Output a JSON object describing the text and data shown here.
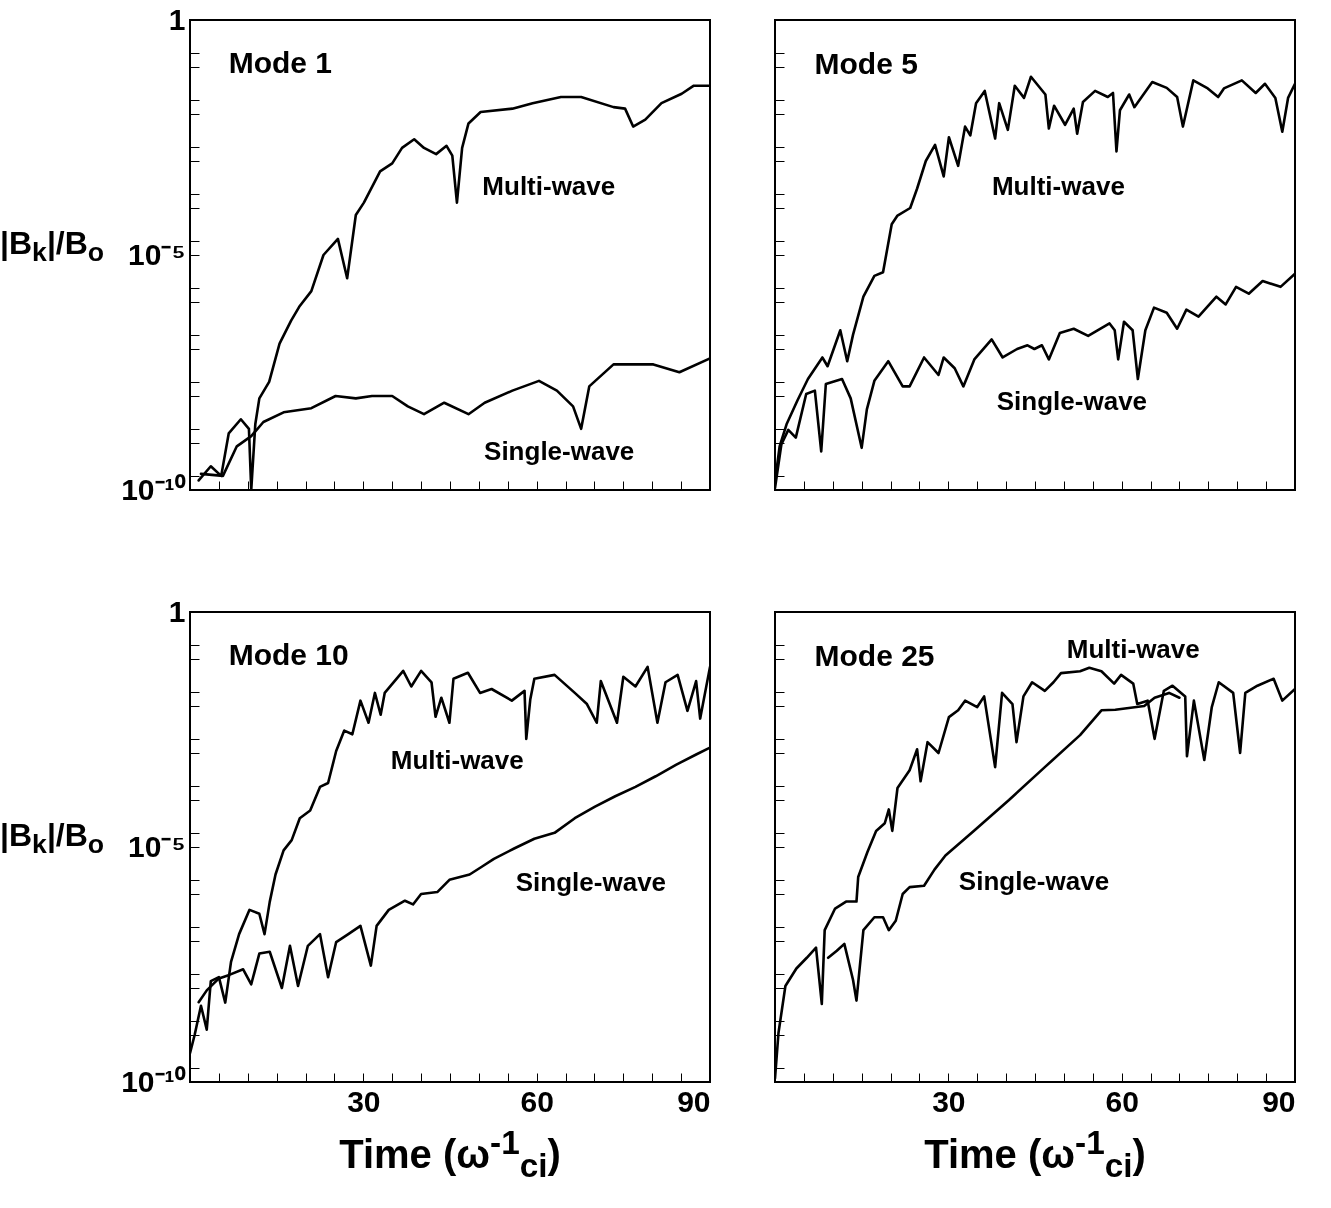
{
  "chart_data": [
    {
      "type": "line",
      "title": "Mode 1",
      "ylabel": "|B$_{k}$|/B$_{o}$",
      "log": "y",
      "tick_labels": "y",
      "xlim": [
        0,
        90
      ],
      "ylim": [
        1e-10,
        1
      ],
      "xticks": [
        {
          "value": 0,
          "label": null
        },
        {
          "value": 5,
          "label": null
        },
        {
          "value": 10,
          "label": null
        },
        {
          "value": 15,
          "label": null
        },
        {
          "value": 20,
          "label": null
        },
        {
          "value": 25,
          "label": null
        },
        {
          "value": 30,
          "label": null
        },
        {
          "value": 35,
          "label": null
        },
        {
          "value": 40,
          "label": null
        },
        {
          "value": 45,
          "label": null
        },
        {
          "value": 50,
          "label": null
        },
        {
          "value": 55,
          "label": null
        },
        {
          "value": 60,
          "label": null
        },
        {
          "value": 65,
          "label": null
        },
        {
          "value": 70,
          "label": null
        },
        {
          "value": 75,
          "label": null
        },
        {
          "value": 80,
          "label": null
        },
        {
          "value": 85,
          "label": null
        },
        {
          "value": 90,
          "label": null
        }
      ],
      "yticks": [
        {
          "value": 1e-10,
          "label": "10⁻¹⁰"
        },
        {
          "value": 2e-10,
          "label": null
        },
        {
          "value": 1e-09,
          "label": null
        },
        {
          "value": 2e-09,
          "label": null
        },
        {
          "value": 1e-08,
          "label": null
        },
        {
          "value": 2e-08,
          "label": null
        },
        {
          "value": 1e-07,
          "label": null
        },
        {
          "value": 2e-07,
          "label": null
        },
        {
          "value": 1e-06,
          "label": null
        },
        {
          "value": 2e-06,
          "label": null
        },
        {
          "value": 1e-05,
          "label": "10⁻⁵"
        },
        {
          "value": 2e-05,
          "label": null
        },
        {
          "value": 0.0001,
          "label": null
        },
        {
          "value": 0.0002,
          "label": null
        },
        {
          "value": 0.001,
          "label": null
        },
        {
          "value": 0.002,
          "label": null
        },
        {
          "value": 0.01,
          "label": null
        },
        {
          "value": 0.02,
          "label": null
        },
        {
          "value": 0.1,
          "label": null
        },
        {
          "value": 0.2,
          "label": null
        },
        1
      ],
      "series": [
        {
          "name": "Multi-wave",
          "color": "#000000",
          "x": [
            1.5,
            3.6,
            5.4,
            6.7,
            8.8,
            10.2,
            10.6,
            11.3,
            12,
            13.7,
            15.5,
            17.5,
            18.9,
            21,
            23.1,
            25.6,
            27.2,
            28.7,
            30.1,
            32.9,
            35,
            36.7,
            38.8,
            40.5,
            42.6,
            44.4,
            45.4,
            46.2,
            47.1,
            48.2,
            50.3,
            55.8,
            59.3,
            64.2,
            67.7,
            73.3,
            75.3,
            76.7,
            78.8,
            81.6,
            85.1,
            87.2,
            90
          ],
          "values": [
            1.6e-10,
            3.2e-10,
            2e-10,
            1.6e-09,
            3.2e-09,
            2e-09,
            1e-10,
            2.5e-09,
            8.9e-09,
            2e-08,
            1.3e-07,
            4e-07,
            7.9e-07,
            1.7e-06,
            1e-05,
            2.2e-05,
            3.2e-06,
            7.1e-05,
            0.00013,
            0.0006,
            0.00089,
            0.0019,
            0.0029,
            0.0019,
            0.0014,
            0.0021,
            0.0013,
            0.00013,
            0.0019,
            0.0063,
            0.011,
            0.013,
            0.017,
            0.023,
            0.023,
            0.014,
            0.013,
            0.0054,
            0.0076,
            0.017,
            0.027,
            0.04,
            0.04
          ]
        },
        {
          "name": "Single-wave",
          "color": "#000000",
          "x": [
            1.9,
            5.7,
            8.1,
            10.6,
            12.7,
            16.2,
            21,
            25.2,
            28.7,
            31.5,
            35,
            37.7,
            40.5,
            44,
            48.2,
            51,
            55.8,
            60.4,
            63.5,
            66.3,
            67.7,
            69.1,
            73.3,
            80.2,
            84.7,
            90
          ],
          "values": [
            2.2e-10,
            2e-10,
            8.5e-10,
            1.4e-09,
            2.8e-09,
            4.5e-09,
            5.5e-09,
            1e-08,
            8.9e-09,
            1e-08,
            1e-08,
            6e-09,
            4.1e-09,
            7.2e-09,
            4.1e-09,
            7.2e-09,
            1.3e-08,
            2.1e-08,
            1.3e-08,
            6e-09,
            2e-09,
            1.6e-08,
            4.7e-08,
            4.7e-08,
            3.2e-08,
            6.3e-08
          ]
        }
      ]
    },
    {
      "type": "line",
      "title": "Mode 5",
      "log": "y",
      "tick_labels": false,
      "xlim": [
        0,
        90
      ],
      "ylim": [
        1e-10,
        1
      ],
      "xticks": [
        {
          "value": 0,
          "label": null
        },
        {
          "value": 5,
          "label": null
        },
        {
          "value": 10,
          "label": null
        },
        {
          "value": 15,
          "label": null
        },
        {
          "value": 20,
          "label": null
        },
        {
          "value": 25,
          "label": null
        },
        {
          "value": 30,
          "label": null
        },
        {
          "value": 35,
          "label": null
        },
        {
          "value": 40,
          "label": null
        },
        {
          "value": 45,
          "label": null
        },
        {
          "value": 50,
          "label": null
        },
        {
          "value": 55,
          "label": null
        },
        {
          "value": 60,
          "label": null
        },
        {
          "value": 65,
          "label": null
        },
        {
          "value": 70,
          "label": null
        },
        {
          "value": 75,
          "label": null
        },
        {
          "value": 80,
          "label": null
        },
        {
          "value": 85,
          "label": null
        },
        {
          "value": 90,
          "label": null
        }
      ],
      "yticks": [
        {
          "value": 1e-10,
          "label": null
        },
        {
          "value": 2e-10,
          "label": null
        },
        {
          "value": 1e-09,
          "label": null
        },
        {
          "value": 2e-09,
          "label": null
        },
        {
          "value": 1e-08,
          "label": null
        },
        {
          "value": 2e-08,
          "label": null
        },
        {
          "value": 1e-07,
          "label": null
        },
        {
          "value": 2e-07,
          "label": null
        },
        {
          "value": 1e-06,
          "label": null
        },
        {
          "value": 2e-06,
          "label": null
        },
        {
          "value": 1e-05,
          "label": null
        },
        {
          "value": 2e-05,
          "label": null
        },
        {
          "value": 0.0001,
          "label": null
        },
        {
          "value": 0.0002,
          "label": null
        },
        {
          "value": 0.001,
          "label": null
        },
        {
          "value": 0.002,
          "label": null
        },
        {
          "value": 0.01,
          "label": null
        },
        {
          "value": 0.02,
          "label": null
        },
        {
          "value": 0.1,
          "label": null
        },
        {
          "value": 0.2,
          "label": null
        },
        {
          "value": 1,
          "label": null
        }
      ],
      "series": [
        {
          "name": "Multi-wave",
          "color": "#000000",
          "x": [
            0,
            0.8,
            2.0,
            3.9,
            5.7,
            8.2,
            9.1,
            11.3,
            12.5,
            13.5,
            15.3,
            17.2,
            18.7,
            20.2,
            21.2,
            23.4,
            24.6,
            26.1,
            27.7,
            29.2,
            30.1,
            31.7,
            32.9,
            33.8,
            34.8,
            36.3,
            38.1,
            38.8,
            40.3,
            41.5,
            43.1,
            44.3,
            46.8,
            47.4,
            48.3,
            50.2,
            51.7,
            52.3,
            53.3,
            55.4,
            57.6,
            58.5,
            59.1,
            59.7,
            61.3,
            62.2,
            65.3,
            67.8,
            69.6,
            70.6,
            72.4,
            74.9,
            76.7,
            77.7,
            80.8,
            83.2,
            84.8,
            86.6,
            87.8,
            88.8,
            90
          ],
          "values": [
            1.5e-10,
            8.5e-10,
            2.5e-09,
            8.1e-09,
            2.3e-08,
            6.6e-08,
            4.3e-08,
            2.5e-07,
            5.5e-08,
            2e-07,
            1.3e-06,
            3.6e-06,
            4.3e-06,
            4.5e-05,
            6.9e-05,
            0.0001,
            0.00026,
            0.001,
            0.0022,
            0.00047,
            0.0032,
            0.00079,
            0.0054,
            0.0035,
            0.017,
            0.031,
            0.003,
            0.017,
            0.0046,
            0.04,
            0.022,
            0.062,
            0.026,
            0.0049,
            0.015,
            0.0059,
            0.013,
            0.0038,
            0.018,
            0.031,
            0.023,
            0.028,
            0.0016,
            0.012,
            0.026,
            0.014,
            0.048,
            0.036,
            0.023,
            0.0054,
            0.052,
            0.035,
            0.023,
            0.035,
            0.052,
            0.028,
            0.044,
            0.022,
            0.0042,
            0.022,
            0.044
          ]
        },
        {
          "name": "Single-wave",
          "color": "#000000",
          "x": [
            0,
            1.1,
            2.3,
            3.6,
            5.4,
            6.9,
            8.0,
            8.8,
            11.6,
            13.1,
            15.0,
            15.9,
            17.2,
            19.6,
            22.1,
            23.3,
            25.8,
            28.3,
            29.2,
            31.1,
            32.6,
            34.5,
            37.5,
            39.4,
            41.9,
            43.7,
            44.9,
            46.2,
            47.4,
            49.3,
            51.7,
            54.2,
            57.9,
            58.8,
            59.4,
            60.4,
            61.9,
            62.8,
            64.1,
            65.6,
            67.8,
            69.6,
            71.2,
            73.3,
            76.4,
            78.0,
            79.8,
            82.0,
            84.4,
            87.5,
            90
          ],
          "values": [
            1.1e-10,
            9.3e-10,
            1.9e-09,
            1.3e-09,
            1.1e-08,
            1.3e-08,
            6.6e-10,
            1.8e-08,
            2.3e-08,
            8.9e-09,
            7.9e-10,
            5.2e-09,
            2.1e-08,
            5.5e-08,
            1.6e-08,
            1.6e-08,
            6.6e-08,
            2.8e-08,
            6.6e-08,
            3.9e-08,
            1.6e-08,
            6e-08,
            1.6e-07,
            6.6e-08,
            1e-07,
            1.2e-07,
            1e-07,
            1.2e-07,
            6e-08,
            2.2e-07,
            2.7e-07,
            1.9e-07,
            3.5e-07,
            2.5e-07,
            6e-08,
            3.8e-07,
            2.5e-07,
            2.3e-08,
            2.5e-07,
            7.6e-07,
            5.9e-07,
            2.7e-07,
            6.9e-07,
            4.9e-07,
            1.3e-06,
            8.9e-07,
            2.1e-06,
            1.5e-06,
            2.8e-06,
            2.1e-06,
            4e-06
          ]
        }
      ]
    },
    {
      "type": "line",
      "title": "Mode 10",
      "ylabel": "|B$_{k}$|/B$_{o}$",
      "xlabel": "Time (ω$^{-1}$$_{ci}$)",
      "log": "y",
      "xlim": [
        0,
        90
      ],
      "ylim": [
        1e-10,
        1
      ],
      "xticks": [
        {
          "value": 0,
          "label": null
        },
        {
          "value": 5,
          "label": null
        },
        {
          "value": 10,
          "label": null
        },
        {
          "value": 15,
          "label": null
        },
        {
          "value": 20,
          "label": null
        },
        {
          "value": 25,
          "label": null
        },
        30,
        {
          "value": 35,
          "label": null
        },
        {
          "value": 40,
          "label": null
        },
        {
          "value": 45,
          "label": null
        },
        {
          "value": 50,
          "label": null
        },
        {
          "value": 55,
          "label": null
        },
        60,
        {
          "value": 65,
          "label": null
        },
        {
          "value": 70,
          "label": null
        },
        {
          "value": 75,
          "label": null
        },
        {
          "value": 80,
          "label": null
        },
        {
          "value": 85,
          "label": null
        },
        90
      ],
      "yticks": [
        {
          "value": 1e-10,
          "label": "10⁻¹⁰"
        },
        {
          "value": 2e-10,
          "label": null
        },
        {
          "value": 1e-09,
          "label": null
        },
        {
          "value": 2e-09,
          "label": null
        },
        {
          "value": 1e-08,
          "label": null
        },
        {
          "value": 2e-08,
          "label": null
        },
        {
          "value": 1e-07,
          "label": null
        },
        {
          "value": 2e-07,
          "label": null
        },
        {
          "value": 1e-06,
          "label": null
        },
        {
          "value": 2e-06,
          "label": null
        },
        {
          "value": 1e-05,
          "label": "10⁻⁵"
        },
        {
          "value": 2e-05,
          "label": null
        },
        {
          "value": 0.0001,
          "label": null
        },
        {
          "value": 0.0002,
          "label": null
        },
        {
          "value": 0.001,
          "label": null
        },
        {
          "value": 0.002,
          "label": null
        },
        {
          "value": 0.01,
          "label": null
        },
        {
          "value": 0.02,
          "label": null
        },
        {
          "value": 0.1,
          "label": null
        },
        {
          "value": 0.2,
          "label": null
        },
        1
      ],
      "series": [
        {
          "name": "Multi-wave",
          "color": "#000000",
          "x": [
            0,
            0.8,
            1.9,
            2.9,
            3.6,
            5.0,
            6.1,
            7.1,
            8.5,
            10.3,
            12.0,
            12.9,
            13.8,
            14.8,
            16.2,
            17.6,
            19.0,
            20.8,
            22.5,
            23.9,
            25.3,
            26.7,
            28.1,
            29.5,
            30.9,
            32.0,
            33.0,
            33.7,
            36.9,
            38.3,
            40.0,
            41.8,
            42.5,
            43.5,
            44.9,
            45.6,
            48.1,
            50.2,
            52.2,
            55.7,
            57.9,
            58.2,
            58.9,
            59.6,
            63.1,
            66.6,
            68.7,
            70.4,
            71.1,
            73.9,
            75.0,
            77.1,
            79.2,
            80.9,
            82.3,
            84.4,
            86.1,
            87.6,
            88.3,
            90
          ],
          "values": [
            4.1e-10,
            1e-09,
            4.2e-09,
            1.3e-09,
            1.4e-08,
            1.7e-08,
            4.9e-09,
            3.6e-08,
            1.4e-07,
            4.6e-07,
            3.8e-07,
            1.4e-07,
            6.8e-07,
            2.6e-06,
            8.5e-06,
            1.4e-05,
            4.1e-05,
            6e-05,
            0.00019,
            0.00023,
            0.0011,
            0.003,
            0.0025,
            0.013,
            0.0044,
            0.019,
            0.0065,
            0.019,
            0.056,
            0.026,
            0.056,
            0.032,
            0.0059,
            0.015,
            0.0044,
            0.038,
            0.051,
            0.019,
            0.023,
            0.013,
            0.021,
            0.002,
            0.014,
            0.038,
            0.046,
            0.019,
            0.011,
            0.0044,
            0.034,
            0.0044,
            0.042,
            0.026,
            0.068,
            0.0044,
            0.032,
            0.046,
            0.0079,
            0.034,
            0.0054,
            0.068
          ]
        },
        {
          "name": "Single-wave",
          "color": "#000000",
          "x": [
            1.5,
            2.9,
            5.0,
            6.8,
            9.2,
            10.6,
            12.0,
            13.8,
            15.9,
            17.3,
            18.7,
            20.4,
            22.5,
            23.9,
            25.3,
            27.4,
            29.5,
            31.3,
            32.3,
            34.4,
            37.2,
            38.6,
            40.0,
            42.8,
            44.9,
            48.4,
            50.5,
            52.6,
            56.1,
            59.6,
            63.1,
            66.6,
            70.1,
            73.6,
            77.1,
            80.6,
            84.1,
            87.6,
            90
          ],
          "values": [
            5e-09,
            8.9e-09,
            1.6e-08,
            1.9e-08,
            2.5e-08,
            1.2e-08,
            5.4e-08,
            5.9e-08,
            1e-08,
            7.9e-08,
            1.1e-08,
            7.9e-08,
            1.4e-07,
            1.7e-08,
            9.5e-08,
            1.4e-07,
            2.1e-07,
            3e-08,
            2.1e-07,
            4.6e-07,
            7.2e-07,
            6e-07,
            1e-06,
            1.1e-06,
            2e-06,
            2.6e-06,
            3.8e-06,
            5.6e-06,
            9.3e-06,
            1.5e-05,
            2e-05,
            4.1e-05,
            7.2e-05,
            0.00012,
            0.00019,
            0.00032,
            0.00056,
            0.00093,
            0.0013
          ]
        }
      ]
    },
    {
      "type": "line",
      "title": "Mode 25",
      "xlabel": "Time (ω$^{-1}$$_{ci}$)",
      "log": "y",
      "tick_labels": "x",
      "xlim": [
        0,
        90
      ],
      "ylim": [
        1e-10,
        1
      ],
      "xticks": [
        {
          "value": 0,
          "label": null
        },
        {
          "value": 5,
          "label": null
        },
        {
          "value": 10,
          "label": null
        },
        {
          "value": 15,
          "label": null
        },
        {
          "value": 20,
          "label": null
        },
        {
          "value": 25,
          "label": null
        },
        30,
        {
          "value": 35,
          "label": null
        },
        {
          "value": 40,
          "label": null
        },
        {
          "value": 45,
          "label": null
        },
        {
          "value": 50,
          "label": null
        },
        {
          "value": 55,
          "label": null
        },
        60,
        {
          "value": 65,
          "label": null
        },
        {
          "value": 70,
          "label": null
        },
        {
          "value": 75,
          "label": null
        },
        {
          "value": 80,
          "label": null
        },
        {
          "value": 85,
          "label": null
        },
        90
      ],
      "yticks": [
        {
          "value": 1e-10,
          "label": null
        },
        {
          "value": 2e-10,
          "label": null
        },
        {
          "value": 1e-09,
          "label": null
        },
        {
          "value": 2e-09,
          "label": null
        },
        {
          "value": 1e-08,
          "label": null
        },
        {
          "value": 2e-08,
          "label": null
        },
        {
          "value": 1e-07,
          "label": null
        },
        {
          "value": 2e-07,
          "label": null
        },
        {
          "value": 1e-06,
          "label": null
        },
        {
          "value": 2e-06,
          "label": null
        },
        {
          "value": 1e-05,
          "label": null
        },
        {
          "value": 2e-05,
          "label": null
        },
        {
          "value": 0.0001,
          "label": null
        },
        {
          "value": 0.0002,
          "label": null
        },
        {
          "value": 0.001,
          "label": null
        },
        {
          "value": 0.002,
          "label": null
        },
        {
          "value": 0.01,
          "label": null
        },
        {
          "value": 0.02,
          "label": null
        },
        {
          "value": 0.1,
          "label": null
        },
        {
          "value": 0.2,
          "label": null
        },
        {
          "value": 1,
          "label": null
        }
      ],
      "series": [
        {
          "name": "Multi-wave",
          "color": "#000000",
          "x": [
            0,
            0.6,
            1.8,
            3.7,
            5.5,
            7.1,
            8.1,
            8.6,
            10.4,
            12.3,
            14.1,
            14.4,
            16.0,
            17.5,
            19.0,
            19.7,
            20.3,
            21.2,
            23.3,
            24.6,
            25.2,
            26.4,
            28.3,
            30.1,
            31.7,
            32.9,
            35.0,
            36.2,
            38.1,
            39.3,
            41.1,
            41.8,
            43.0,
            44.5,
            46.7,
            48.2,
            49.5,
            52.8,
            54.4,
            56.5,
            58.7,
            59.9,
            62.0,
            62.7,
            64.5,
            65.7,
            67.3,
            68.8,
            71.0,
            71.3,
            72.5,
            74.3,
            75.6,
            76.8,
            79.3,
            80.5,
            81.4,
            83.5,
            86.3,
            87.8,
            90
          ],
          "values": [
            1.2e-10,
            1.1e-09,
            1.1e-08,
            2.6e-08,
            4.4e-08,
            7.2e-08,
            4.6e-09,
            1.7e-07,
            4.9e-07,
            6.9e-07,
            6.9e-07,
            2.3e-06,
            7.8e-06,
            2.2e-05,
            3.2e-05,
            6.3e-05,
            2.2e-05,
            0.00018,
            0.00043,
            0.0012,
            0.00025,
            0.0017,
            0.001,
            0.0058,
            0.0081,
            0.013,
            0.0095,
            0.016,
            0.0005,
            0.019,
            0.011,
            0.0017,
            0.016,
            0.032,
            0.021,
            0.032,
            0.05,
            0.055,
            0.065,
            0.055,
            0.03,
            0.046,
            0.03,
            0.011,
            0.013,
            0.002,
            0.021,
            0.027,
            0.016,
            0.00085,
            0.013,
            0.00071,
            0.0095,
            0.032,
            0.019,
            0.001,
            0.019,
            0.027,
            0.038,
            0.013,
            0.023
          ]
        },
        {
          "name": "Single-wave",
          "color": "#000000",
          "x": [
            9.2,
            10.7,
            12.0,
            13.5,
            14.1,
            15.3,
            17.2,
            18.7,
            19.7,
            20.9,
            22.1,
            23.3,
            25.8,
            27.6,
            29.5,
            34.4,
            40.5,
            46.7,
            52.8,
            56.5,
            58.9,
            63.9,
            65.7,
            68.2,
            70.0
          ],
          "values": [
            4.4e-08,
            6.2e-08,
            8.7e-08,
            1.5e-08,
            5.4e-09,
            1.7e-07,
            3.2e-07,
            3.2e-07,
            1.7e-07,
            2.7e-07,
            1e-06,
            1.4e-06,
            1.5e-06,
            3.3e-06,
            6.6e-06,
            2.2e-05,
            0.0001,
            0.0005,
            0.0024,
            0.0081,
            0.0083,
            0.01,
            0.015,
            0.019,
            0.015
          ]
        }
      ]
    }
  ]
}
